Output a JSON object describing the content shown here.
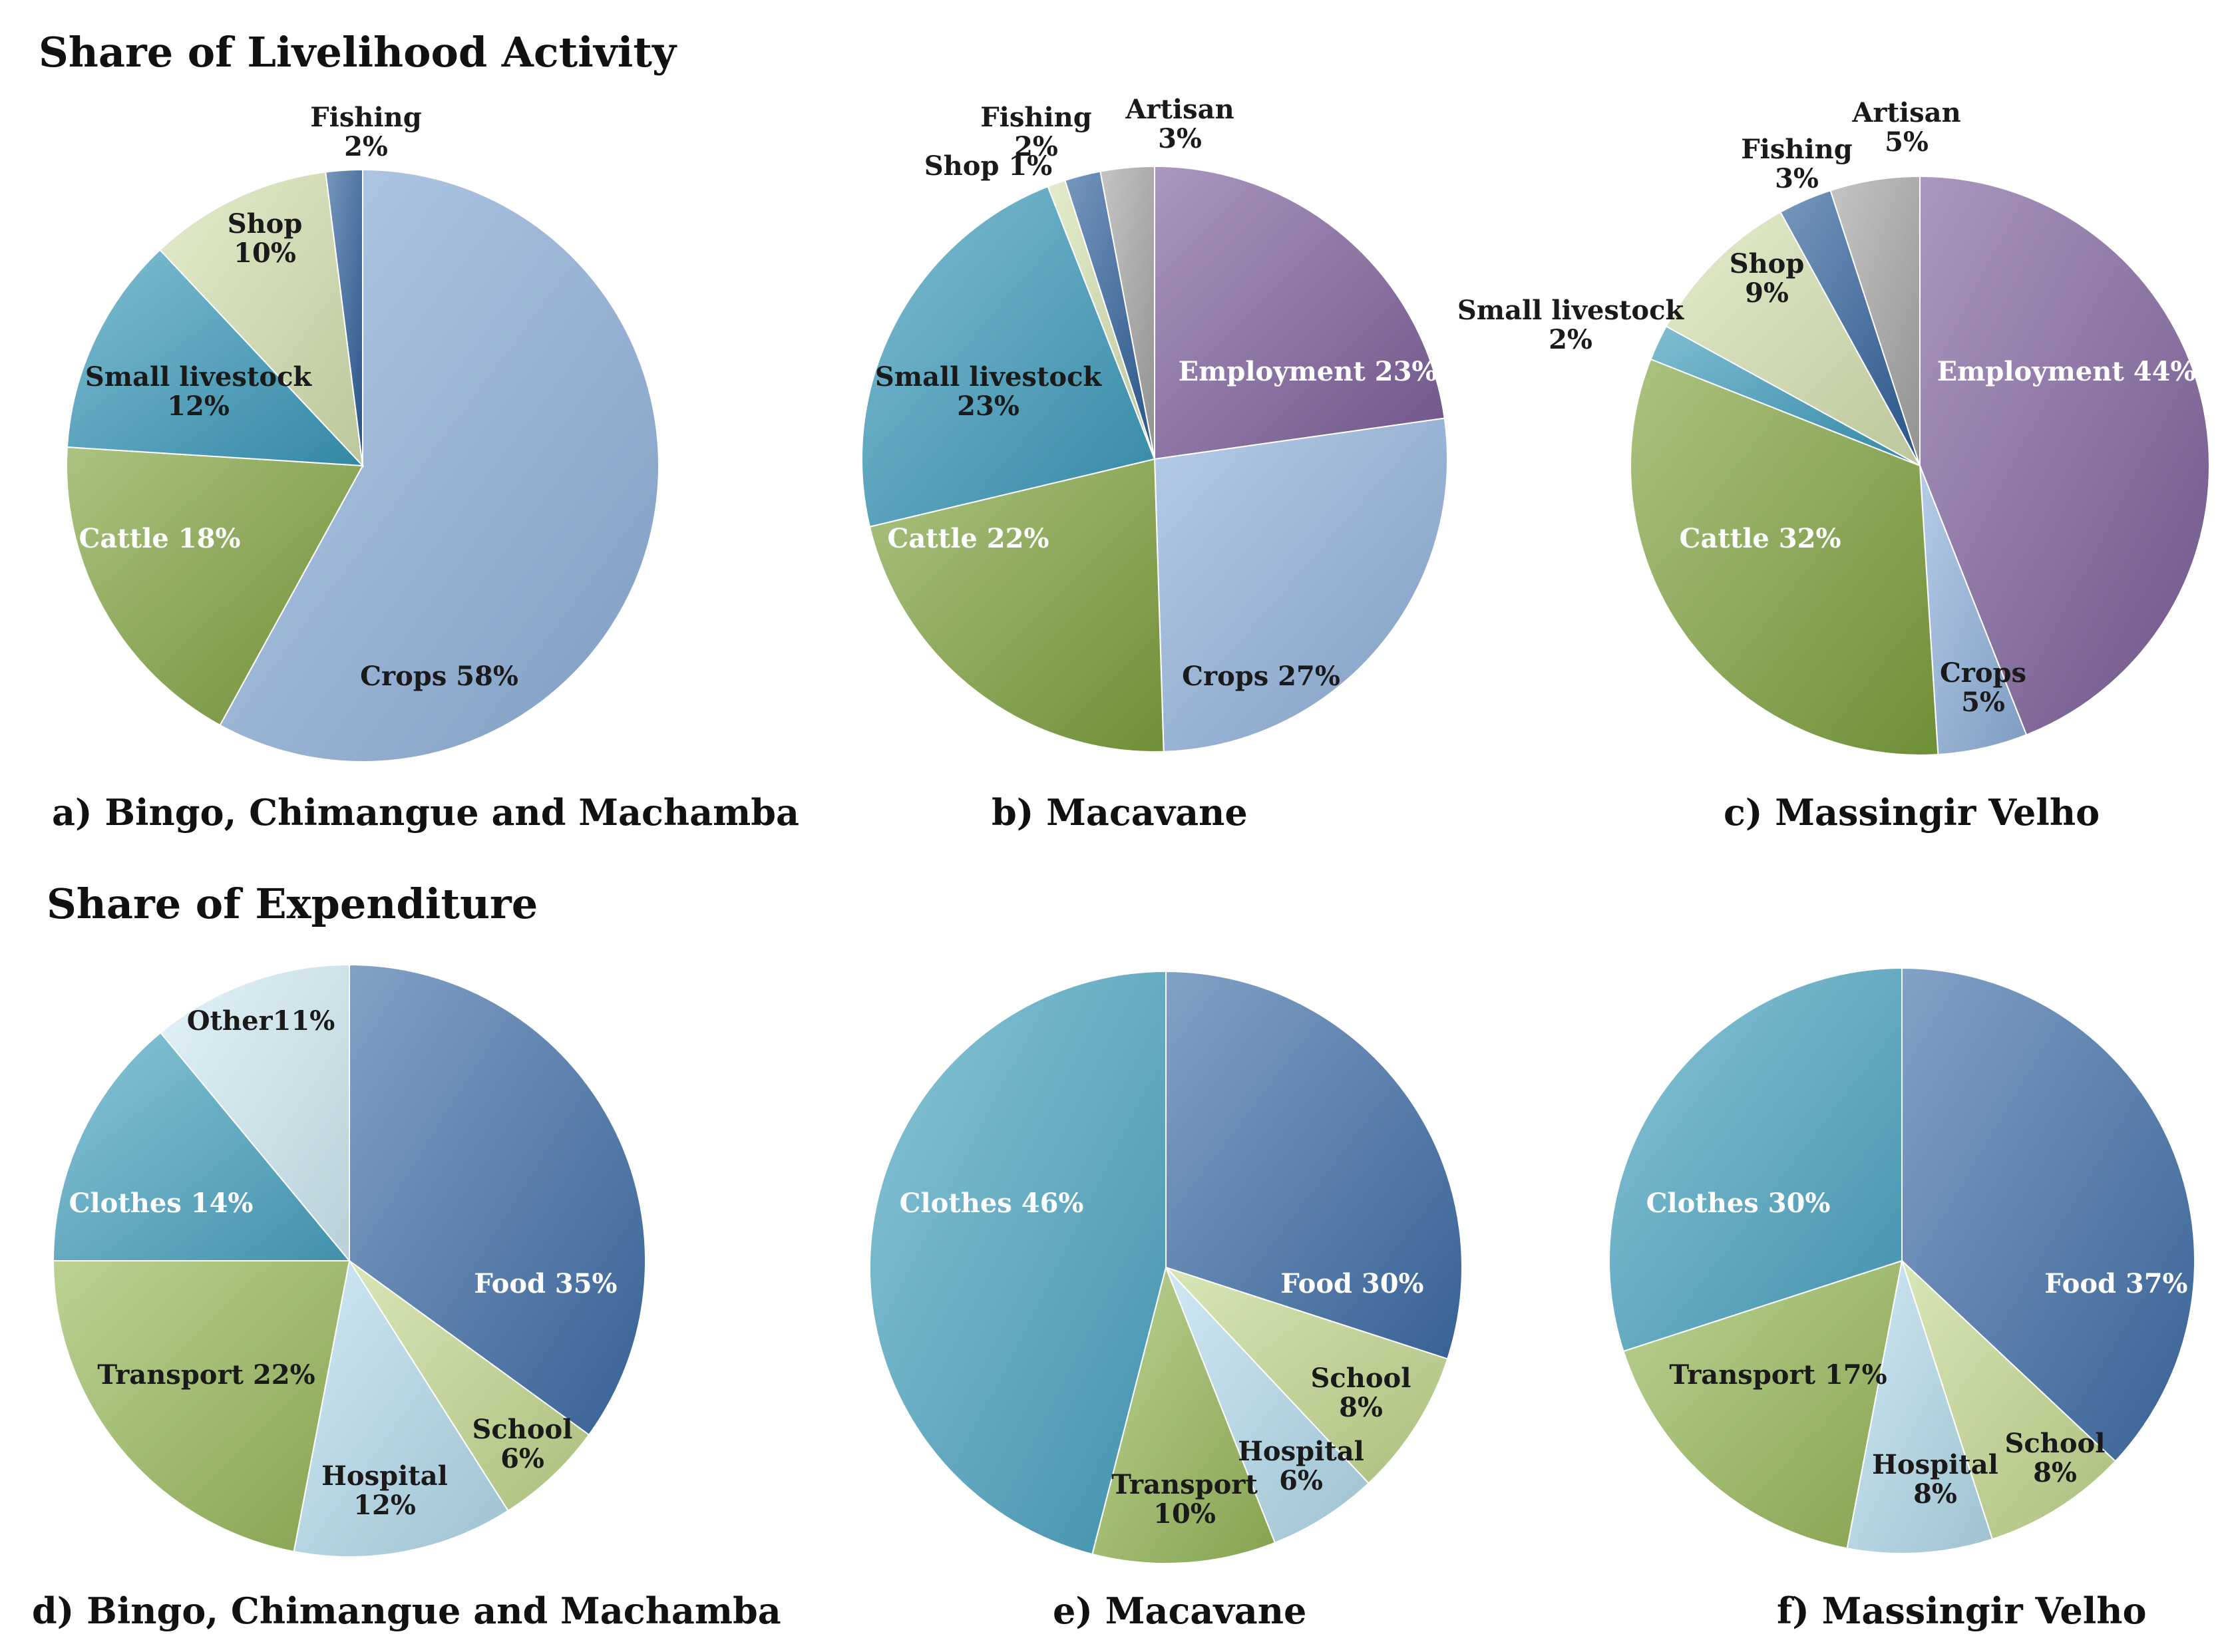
{
  "sections": {
    "livelihood_title": "Share of Livelihood Activity",
    "expenditure_title": "Share of Expenditure"
  },
  "colors": {
    "employment": "#7e5f9c",
    "artisan": "#a6a6a6",
    "fishing": "#2e5f9a",
    "shop": "#d6e2b0",
    "small_livestock": "#3a9bbc",
    "cattle": "#7ea33d",
    "crops": "#8fb1dc",
    "food": "#3f6ea8",
    "school": "#c3d98e",
    "hospital": "#b5dcec",
    "transport": "#97b95a",
    "clothes": "#4aa5c3",
    "other": "#d2ecf5",
    "dark_text": "#1a1a1a",
    "light_text": "#ffffff"
  },
  "chart_data": [
    {
      "id": "a",
      "type": "pie",
      "section": "livelihood",
      "caption": "a) Bingo, Chimangue and Machamba",
      "slices": [
        {
          "name": "Crops",
          "value": 58,
          "label_line1": "Crops 58%",
          "label_line2": "",
          "color_key": "crops",
          "text": "dark"
        },
        {
          "name": "Cattle",
          "value": 18,
          "label_line1": "Cattle 18%",
          "label_line2": "",
          "color_key": "cattle",
          "text": "light"
        },
        {
          "name": "Small livestock",
          "value": 12,
          "label_line1": "Small livestock",
          "label_line2": "12%",
          "color_key": "small_livestock",
          "text": "dark"
        },
        {
          "name": "Shop",
          "value": 10,
          "label_line1": "Shop",
          "label_line2": "10%",
          "color_key": "shop",
          "text": "dark"
        },
        {
          "name": "Fishing",
          "value": 2,
          "label_line1": "Fishing",
          "label_line2": "2%",
          "color_key": "fishing",
          "text": "dark"
        }
      ]
    },
    {
      "id": "b",
      "type": "pie",
      "section": "livelihood",
      "caption": "b) Macavane",
      "slices": [
        {
          "name": "Employment",
          "value": 23,
          "label_line1": "Employment 23%",
          "label_line2": "",
          "color_key": "employment",
          "text": "light"
        },
        {
          "name": "Crops",
          "value": 27,
          "label_line1": "Crops 27%",
          "label_line2": "",
          "color_key": "crops",
          "text": "dark"
        },
        {
          "name": "Cattle",
          "value": 22,
          "label_line1": "Cattle 22%",
          "label_line2": "",
          "color_key": "cattle",
          "text": "light"
        },
        {
          "name": "Small livestock",
          "value": 23,
          "label_line1": "Small livestock",
          "label_line2": "23%",
          "color_key": "small_livestock",
          "text": "dark"
        },
        {
          "name": "Shop",
          "value": 1,
          "label_line1": "Shop 1%",
          "label_line2": "",
          "color_key": "shop",
          "text": "dark"
        },
        {
          "name": "Fishing",
          "value": 2,
          "label_line1": "Fishing",
          "label_line2": "2%",
          "color_key": "fishing",
          "text": "dark"
        },
        {
          "name": "Artisan",
          "value": 3,
          "label_line1": "Artisan",
          "label_line2": "3%",
          "color_key": "artisan",
          "text": "dark"
        }
      ]
    },
    {
      "id": "c",
      "type": "pie",
      "section": "livelihood",
      "caption": "c) Massingir Velho",
      "slices": [
        {
          "name": "Employment",
          "value": 44,
          "label_line1": "Employment 44%",
          "label_line2": "",
          "color_key": "employment",
          "text": "light"
        },
        {
          "name": "Crops",
          "value": 5,
          "label_line1": "Crops",
          "label_line2": "5%",
          "color_key": "crops",
          "text": "dark"
        },
        {
          "name": "Cattle",
          "value": 32,
          "label_line1": "Cattle 32%",
          "label_line2": "",
          "color_key": "cattle",
          "text": "light"
        },
        {
          "name": "Small livestock",
          "value": 2,
          "label_line1": "Small livestock",
          "label_line2": "2%",
          "color_key": "small_livestock",
          "text": "dark"
        },
        {
          "name": "Shop",
          "value": 9,
          "label_line1": "Shop",
          "label_line2": "9%",
          "color_key": "shop",
          "text": "dark"
        },
        {
          "name": "Fishing",
          "value": 3,
          "label_line1": "Fishing",
          "label_line2": "3%",
          "color_key": "fishing",
          "text": "dark"
        },
        {
          "name": "Artisan",
          "value": 5,
          "label_line1": "Artisan",
          "label_line2": "5%",
          "color_key": "artisan",
          "text": "dark"
        }
      ]
    },
    {
      "id": "d",
      "type": "pie",
      "section": "expenditure",
      "caption": "d) Bingo, Chimangue and Machamba",
      "slices": [
        {
          "name": "Food",
          "value": 35,
          "label_line1": "Food 35%",
          "label_line2": "",
          "color_key": "food",
          "text": "light"
        },
        {
          "name": "School",
          "value": 6,
          "label_line1": "School",
          "label_line2": "6%",
          "color_key": "school",
          "text": "dark"
        },
        {
          "name": "Hospital",
          "value": 12,
          "label_line1": "Hospital",
          "label_line2": "12%",
          "color_key": "hospital",
          "text": "dark"
        },
        {
          "name": "Transport",
          "value": 22,
          "label_line1": "Transport 22%",
          "label_line2": "",
          "color_key": "transport",
          "text": "dark"
        },
        {
          "name": "Clothes",
          "value": 14,
          "label_line1": "Clothes 14%",
          "label_line2": "",
          "color_key": "clothes",
          "text": "light"
        },
        {
          "name": "Other",
          "value": 11,
          "label_line1": "Other11%",
          "label_line2": "",
          "color_key": "other",
          "text": "dark"
        }
      ]
    },
    {
      "id": "e",
      "type": "pie",
      "section": "expenditure",
      "caption": "e) Macavane",
      "slices": [
        {
          "name": "Food",
          "value": 30,
          "label_line1": "Food 30%",
          "label_line2": "",
          "color_key": "food",
          "text": "light"
        },
        {
          "name": "School",
          "value": 8,
          "label_line1": "School",
          "label_line2": "8%",
          "color_key": "school",
          "text": "dark"
        },
        {
          "name": "Hospital",
          "value": 6,
          "label_line1": "Hospital",
          "label_line2": "6%",
          "color_key": "hospital",
          "text": "dark"
        },
        {
          "name": "Transport",
          "value": 10,
          "label_line1": "Transport",
          "label_line2": "10%",
          "color_key": "transport",
          "text": "dark"
        },
        {
          "name": "Clothes",
          "value": 46,
          "label_line1": "Clothes 46%",
          "label_line2": "",
          "color_key": "clothes",
          "text": "light"
        }
      ]
    },
    {
      "id": "f",
      "type": "pie",
      "section": "expenditure",
      "caption": "f) Massingir Velho",
      "slices": [
        {
          "name": "Food",
          "value": 37,
          "label_line1": "Food 37%",
          "label_line2": "",
          "color_key": "food",
          "text": "light"
        },
        {
          "name": "School",
          "value": 8,
          "label_line1": "School",
          "label_line2": "8%",
          "color_key": "school",
          "text": "dark"
        },
        {
          "name": "Hospital",
          "value": 8,
          "label_line1": "Hospital",
          "label_line2": "8%",
          "color_key": "hospital",
          "text": "dark"
        },
        {
          "name": "Transport",
          "value": 17,
          "label_line1": "Transport 17%",
          "label_line2": "",
          "color_key": "transport",
          "text": "dark"
        },
        {
          "name": "Clothes",
          "value": 30,
          "label_line1": "Clothes 30%",
          "label_line2": "",
          "color_key": "clothes",
          "text": "light"
        }
      ]
    }
  ]
}
